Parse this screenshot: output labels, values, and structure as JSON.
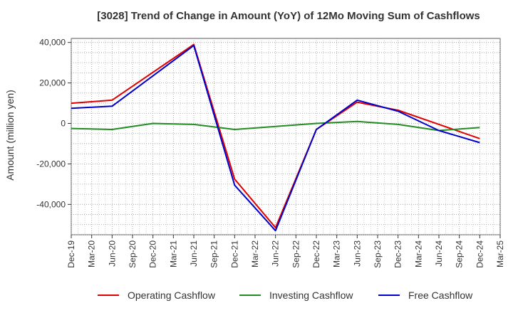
{
  "chart_data": {
    "type": "line",
    "title": "[3028]  Trend of Change in Amount (YoY) of 12Mo Moving Sum of Cashflows",
    "xlabel": "",
    "ylabel": "Amount (million yen)",
    "ylim": [
      -55000,
      42000
    ],
    "yticks": [
      40000,
      20000,
      0,
      -20000,
      -40000
    ],
    "ytick_labels": [
      "40,000",
      "20,000",
      "0",
      "-20,000",
      "-40,000"
    ],
    "categories": [
      "Dec-19",
      "Mar-20",
      "Jun-20",
      "Sep-20",
      "Dec-20",
      "Mar-21",
      "Jun-21",
      "Sep-21",
      "Dec-21",
      "Mar-22",
      "Jun-22",
      "Sep-22",
      "Dec-22",
      "Mar-23",
      "Jun-23",
      "Sep-23",
      "Dec-23",
      "Mar-24",
      "Jun-24",
      "Sep-24",
      "Dec-24",
      "Mar-25"
    ],
    "grid": true,
    "legend_position": "bottom",
    "series": [
      {
        "name": "Operating Cashflow",
        "color": "#e00000",
        "values": [
          10000,
          null,
          11500,
          null,
          null,
          null,
          39000,
          null,
          -27500,
          null,
          -51500,
          null,
          -3000,
          null,
          10500,
          null,
          6500,
          null,
          null,
          null,
          -7500,
          null
        ]
      },
      {
        "name": "Investing Cashflow",
        "color": "#228b22",
        "values": [
          -2500,
          null,
          -3000,
          null,
          0,
          null,
          -500,
          null,
          -3000,
          null,
          -1500,
          null,
          0,
          null,
          1000,
          null,
          -500,
          null,
          -3500,
          null,
          -2000,
          null
        ]
      },
      {
        "name": "Free Cashflow",
        "color": "#0000cc",
        "values": [
          7500,
          null,
          8500,
          null,
          null,
          null,
          38500,
          null,
          -30500,
          null,
          -53000,
          null,
          -3000,
          null,
          11500,
          null,
          6000,
          null,
          -3500,
          null,
          -9500,
          null
        ]
      }
    ]
  }
}
